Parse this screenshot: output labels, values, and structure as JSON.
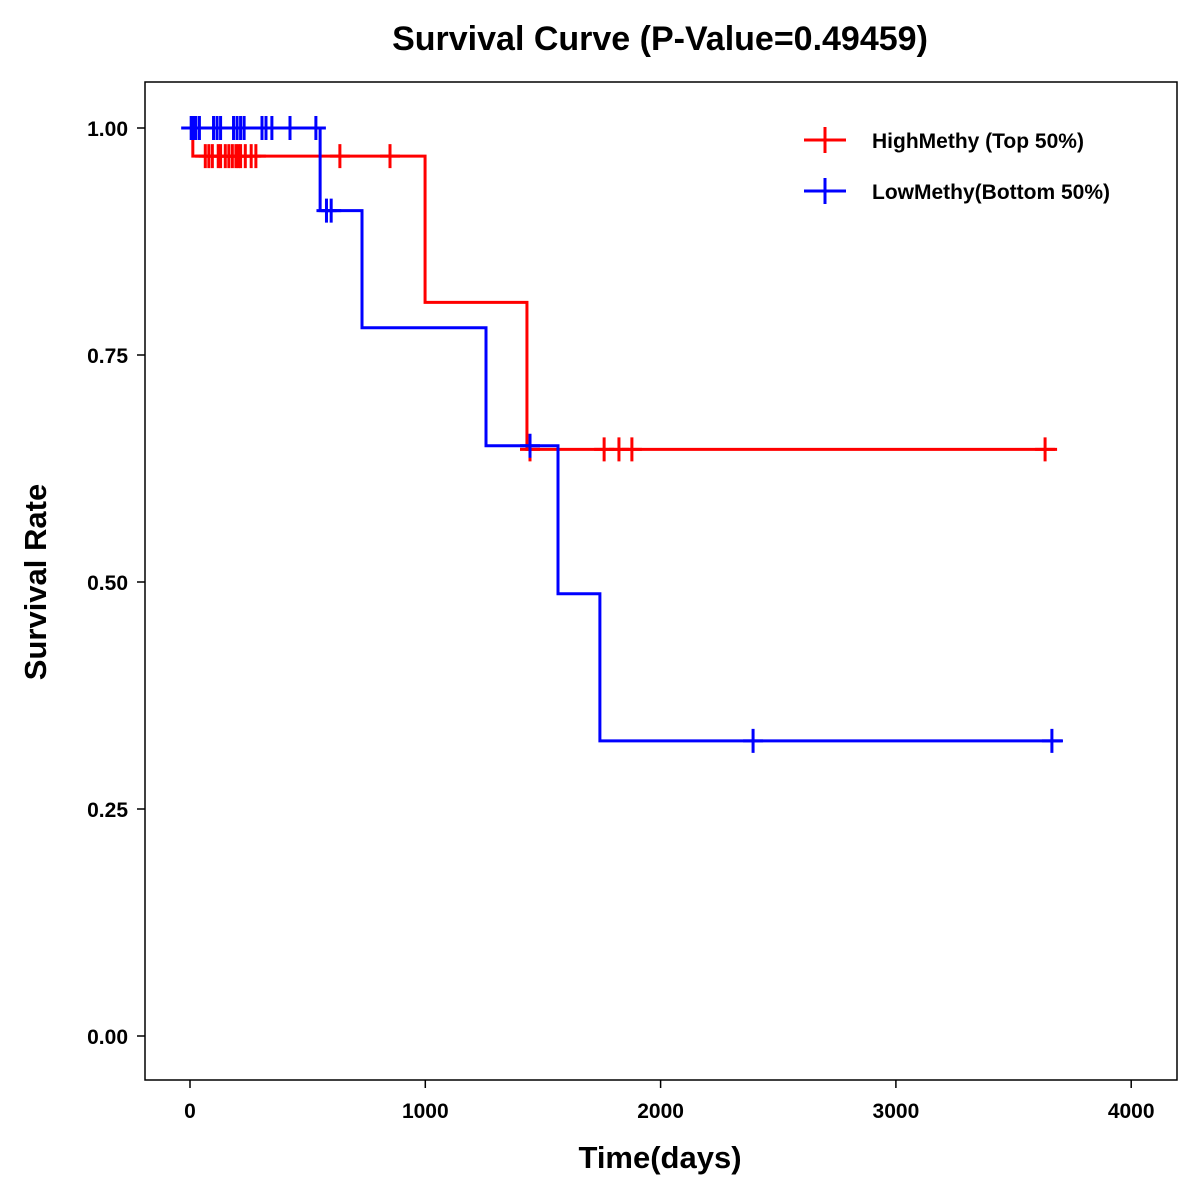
{
  "chart_data": {
    "type": "line",
    "subtype": "kaplan-meier step",
    "title": "Survival Curve (P-Value=0.49459)",
    "xlabel": "Time(days)",
    "ylabel": "Survival Rate",
    "xlim": [
      -190,
      4200
    ],
    "ylim": [
      -0.05,
      1.05
    ],
    "xticks": [
      0,
      1000,
      2000,
      3000,
      4000
    ],
    "xtick_labels": [
      "0",
      "1000",
      "2000",
      "3000",
      "4000"
    ],
    "yticks": [
      0,
      0.25,
      0.5,
      0.75,
      1.0
    ],
    "ytick_labels": [
      "0.00",
      "0.25",
      "0.50",
      "0.75",
      "1.00"
    ],
    "grid": false,
    "legend_position": "top-right",
    "series": [
      {
        "name": "HighMethy (Top 50%)",
        "color": "#ff0000",
        "steps": [
          [
            0,
            1.0
          ],
          [
            12,
            0.969
          ],
          [
            999,
            0.808
          ],
          [
            1432,
            0.646
          ],
          [
            3685,
            0.646
          ]
        ],
        "censored": [
          [
            65,
            0.969
          ],
          [
            80,
            0.969
          ],
          [
            95,
            0.969
          ],
          [
            120,
            0.969
          ],
          [
            130,
            0.969
          ],
          [
            150,
            0.969
          ],
          [
            165,
            0.969
          ],
          [
            180,
            0.969
          ],
          [
            195,
            0.969
          ],
          [
            205,
            0.969
          ],
          [
            215,
            0.969
          ],
          [
            235,
            0.969
          ],
          [
            260,
            0.969
          ],
          [
            280,
            0.969
          ],
          [
            637,
            0.969
          ],
          [
            850,
            0.969
          ],
          [
            1445,
            0.646
          ],
          [
            1760,
            0.646
          ],
          [
            1823,
            0.646
          ],
          [
            1878,
            0.646
          ],
          [
            3634,
            0.646
          ]
        ]
      },
      {
        "name": "LowMethy(Bottom 50%)",
        "color": "#0000ff",
        "steps": [
          [
            0,
            1.0
          ],
          [
            553,
            0.909
          ],
          [
            731,
            0.78
          ],
          [
            1258,
            0.65
          ],
          [
            1564,
            0.487
          ],
          [
            1742,
            0.325
          ],
          [
            3710,
            0.325
          ]
        ],
        "censored": [
          [
            5,
            1.0
          ],
          [
            15,
            1.0
          ],
          [
            25,
            1.0
          ],
          [
            40,
            1.0
          ],
          [
            100,
            1.0
          ],
          [
            115,
            1.0
          ],
          [
            130,
            1.0
          ],
          [
            185,
            1.0
          ],
          [
            200,
            1.0
          ],
          [
            215,
            1.0
          ],
          [
            230,
            1.0
          ],
          [
            306,
            1.0
          ],
          [
            323,
            1.0
          ],
          [
            348,
            1.0
          ],
          [
            425,
            1.0
          ],
          [
            535,
            1.0
          ],
          [
            580,
            0.909
          ],
          [
            600,
            0.909
          ],
          [
            1445,
            0.65
          ],
          [
            2393,
            0.325
          ],
          [
            3663,
            0.325
          ]
        ]
      }
    ]
  }
}
